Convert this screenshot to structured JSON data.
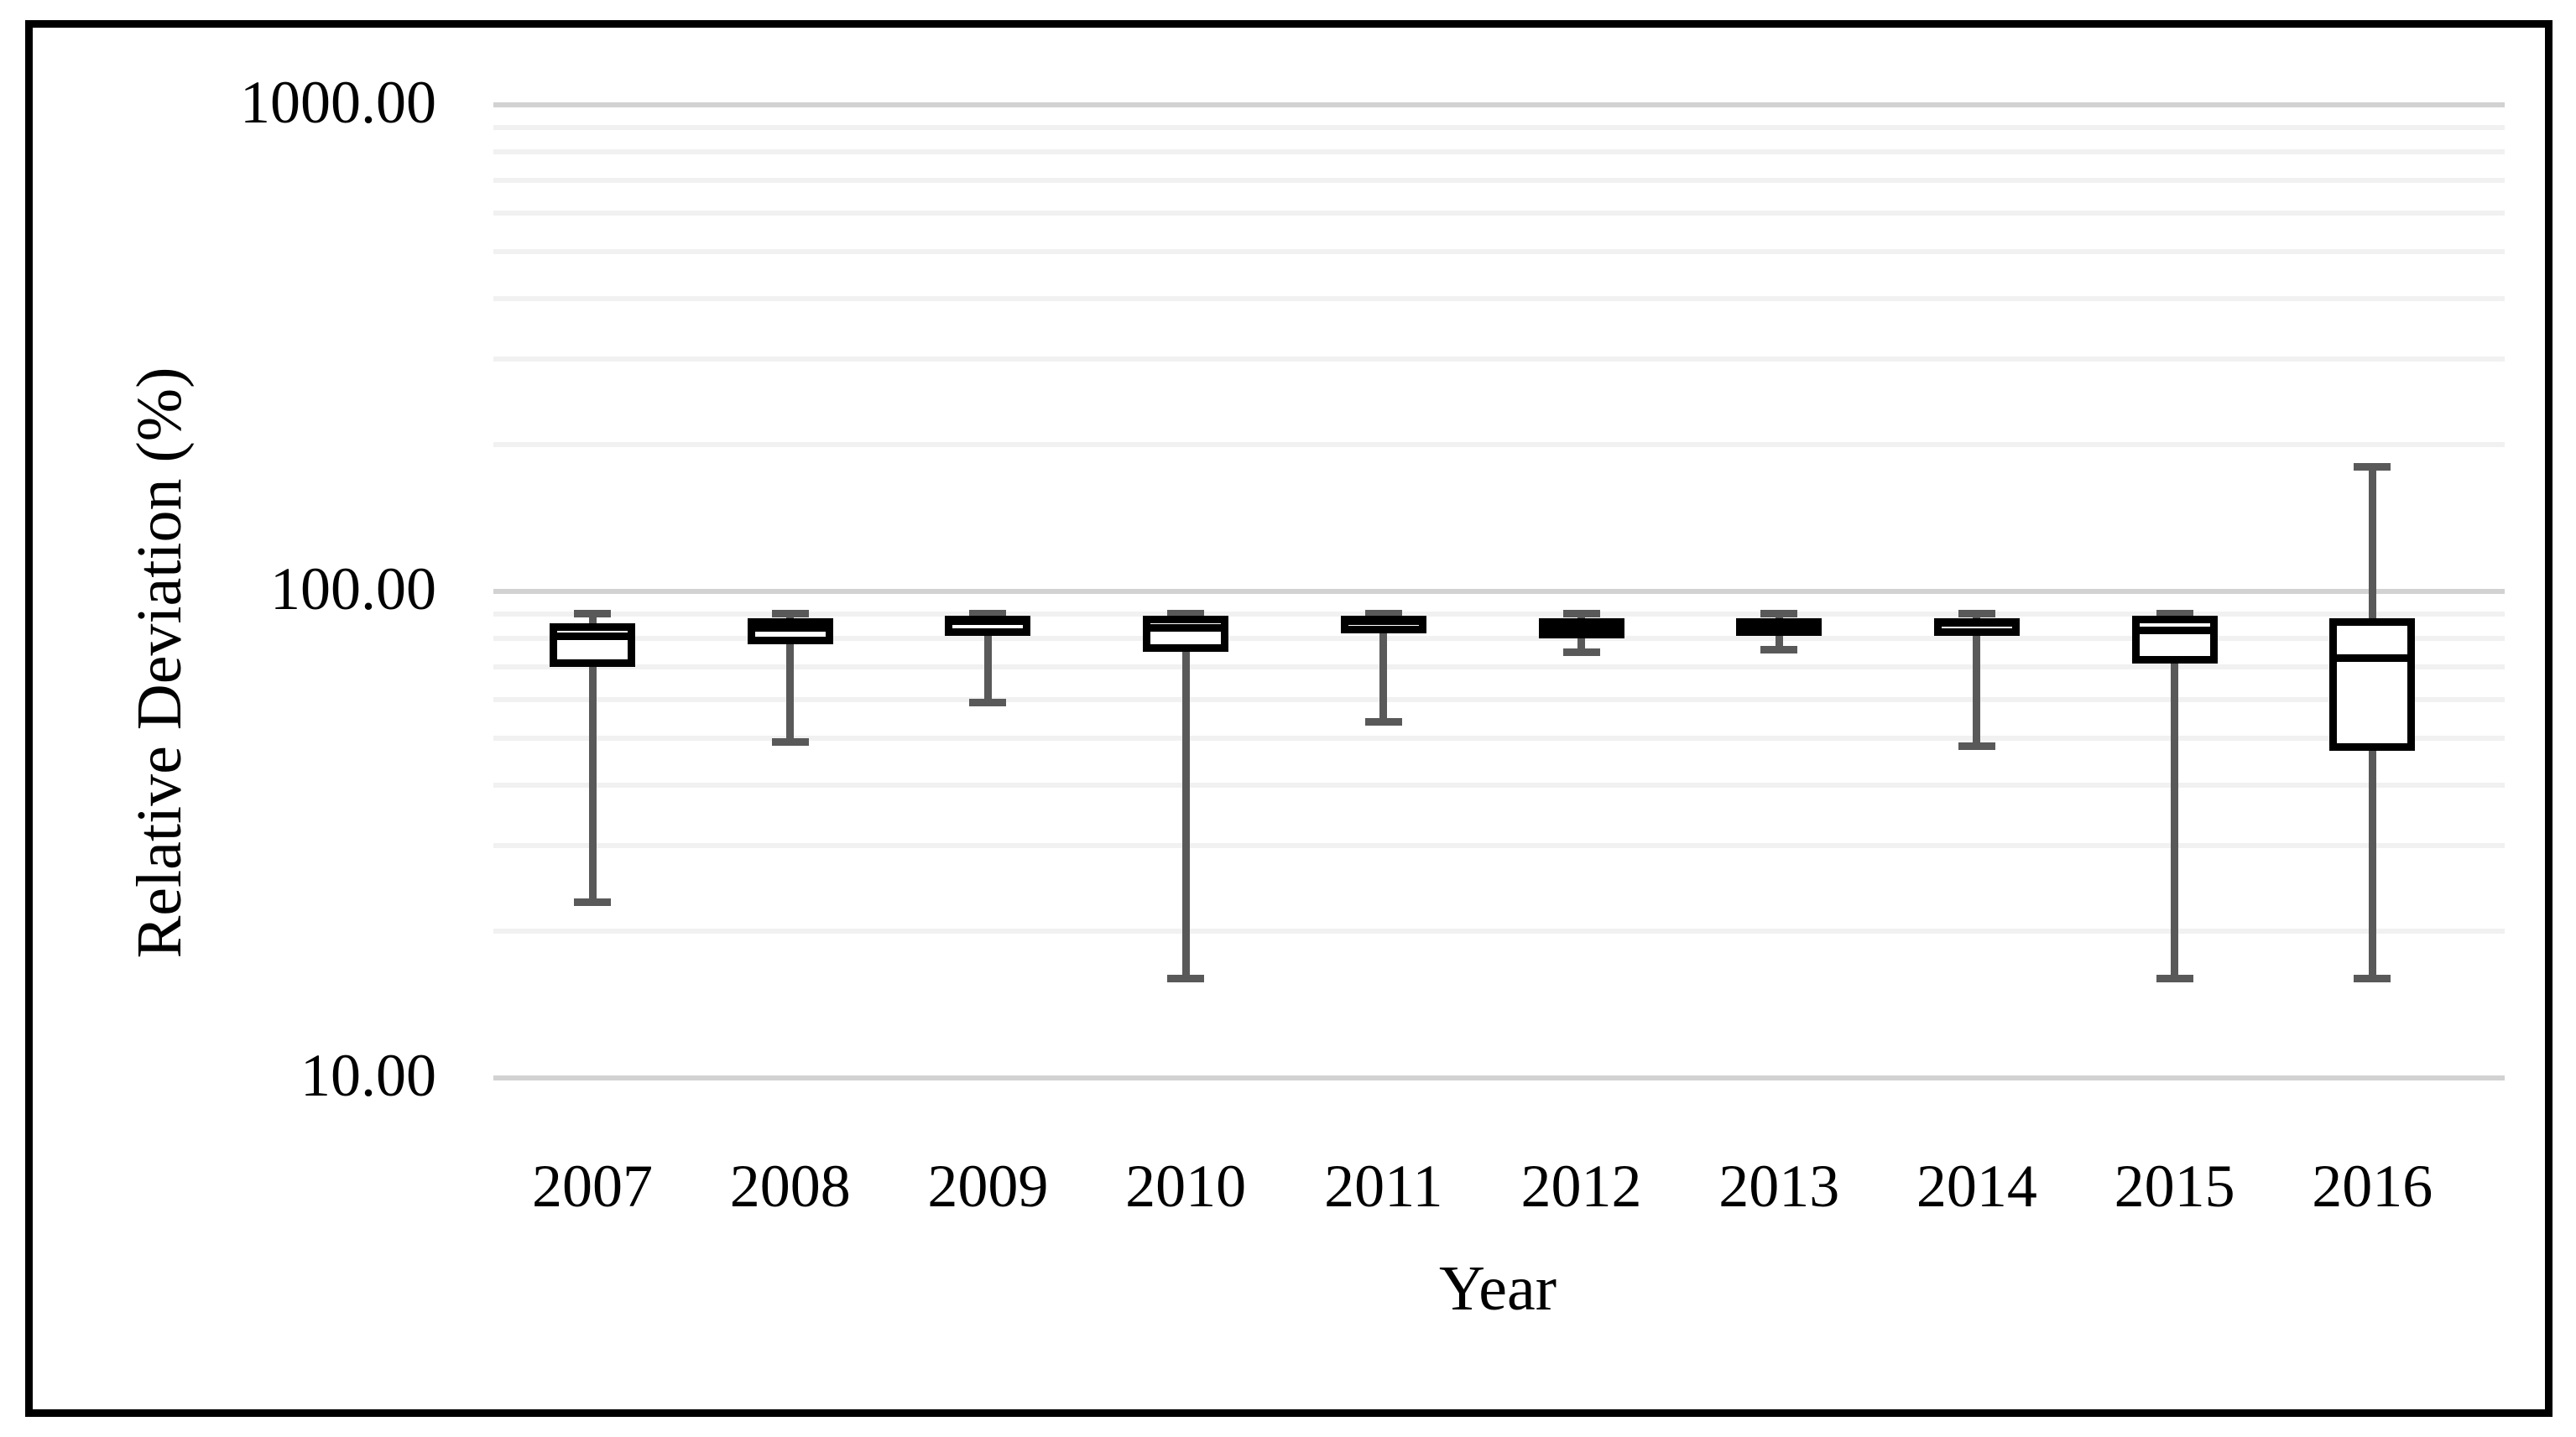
{
  "figure": {
    "y_axis_title": "Relative Deviation (%)",
    "x_axis_title": "Year",
    "y_tick_labels": [
      "1000.00",
      "100.00",
      "10.00"
    ]
  },
  "chart_data": {
    "type": "boxplot",
    "title": "",
    "xlabel": "Year",
    "ylabel": "Relative Deviation (%)",
    "yscale": "log",
    "ylim": [
      10,
      1000
    ],
    "y_ticks": [
      {
        "value": 1000,
        "label": "1000.00"
      },
      {
        "value": 100,
        "label": "100.00"
      },
      {
        "value": 10,
        "label": "10.00"
      }
    ],
    "minor_gridlines": [
      900,
      800,
      700,
      600,
      500,
      400,
      300,
      200,
      90,
      80,
      70,
      60,
      50,
      40,
      30,
      20
    ],
    "grid": "horizontal log gridlines, major darker than minor",
    "legend": "none",
    "categories": [
      "2007",
      "2008",
      "2009",
      "2010",
      "2011",
      "2012",
      "2013",
      "2014",
      "2015",
      "2016"
    ],
    "series": [
      {
        "year": "2007",
        "whisker_low": 23,
        "q1": 70,
        "median": 81,
        "q3": 86,
        "whisker_high": 90
      },
      {
        "year": "2008",
        "whisker_low": 49,
        "q1": 78,
        "median": 84,
        "q3": 88,
        "whisker_high": 90
      },
      {
        "year": "2009",
        "whisker_low": 59,
        "q1": 81,
        "median": 87,
        "q3": 89,
        "whisker_high": 90
      },
      {
        "year": "2010",
        "whisker_low": 16,
        "q1": 75,
        "median": 84,
        "q3": 89,
        "whisker_high": 90
      },
      {
        "year": "2011",
        "whisker_low": 54,
        "q1": 82,
        "median": 87,
        "q3": 89,
        "whisker_high": 90
      },
      {
        "year": "2012",
        "whisker_low": 75,
        "q1": 80,
        "median": 84,
        "q3": 88,
        "whisker_high": 90
      },
      {
        "year": "2013",
        "whisker_low": 76,
        "q1": 81,
        "median": 84,
        "q3": 88,
        "whisker_high": 90
      },
      {
        "year": "2014",
        "whisker_low": 48,
        "q1": 81,
        "median": 86,
        "q3": 88,
        "whisker_high": 90
      },
      {
        "year": "2015",
        "whisker_low": 16,
        "q1": 71,
        "median": 83,
        "q3": 89,
        "whisker_high": 90
      },
      {
        "year": "2016",
        "whisker_low": 16,
        "q1": 47,
        "median": 73,
        "q3": 88,
        "whisker_high": 180
      }
    ],
    "colors": {
      "box_border": "#000000",
      "box_fill": "#ffffff",
      "whisker": "#595959",
      "grid_major": "#d2d2d2",
      "grid_minor": "#f1f1f1"
    }
  }
}
